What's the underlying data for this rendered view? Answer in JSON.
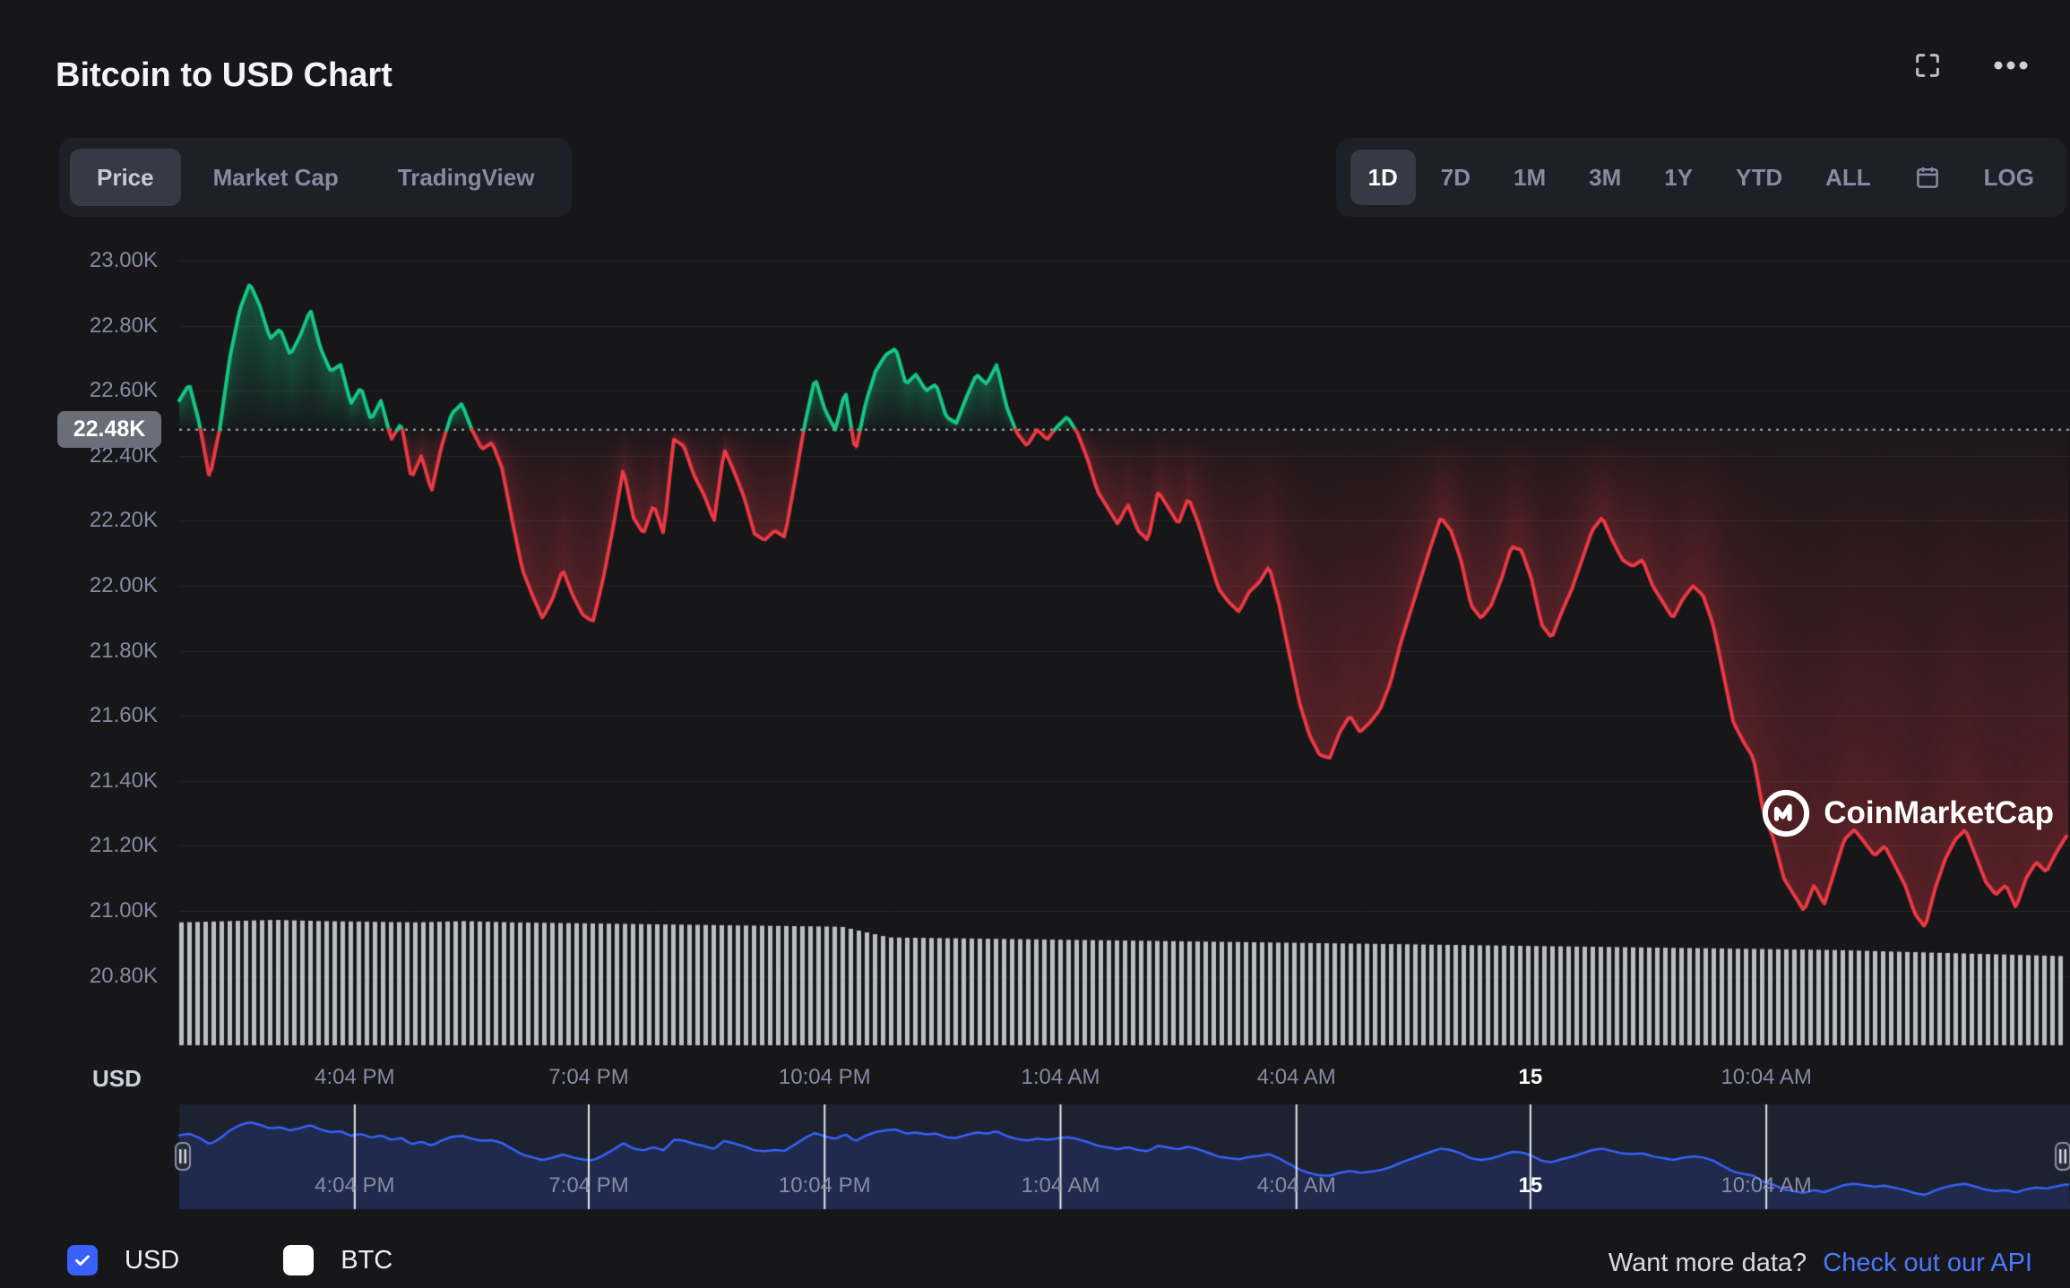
{
  "header": {
    "title": "Bitcoin to USD Chart"
  },
  "tabs": {
    "items": [
      {
        "label": "Price",
        "active": true
      },
      {
        "label": "Market Cap",
        "active": false
      },
      {
        "label": "TradingView",
        "active": false
      }
    ]
  },
  "ranges": {
    "items": [
      {
        "label": "1D",
        "active": true
      },
      {
        "label": "7D",
        "active": false
      },
      {
        "label": "1M",
        "active": false
      },
      {
        "label": "3M",
        "active": false
      },
      {
        "label": "1Y",
        "active": false
      },
      {
        "label": "YTD",
        "active": false
      },
      {
        "label": "ALL",
        "active": false
      }
    ],
    "log_label": "LOG"
  },
  "axis": {
    "usd_label": "USD"
  },
  "watermark": {
    "text": "CoinMarketCap"
  },
  "footer": {
    "usd_label": "USD",
    "btc_label": "BTC",
    "prompt": "Want more data?",
    "link": "Check out our API"
  },
  "colors": {
    "background": "#17171a",
    "up_green": "#16c784",
    "down_red": "#ea3943",
    "navigator_blue": "#3961fb",
    "link_blue": "#4a78ff",
    "checkbox_blue": "#3861fb",
    "muted_text": "#858ca2"
  },
  "chart_data": {
    "type": "line",
    "title": "Bitcoin to USD Chart",
    "currency": "USD",
    "baseline": 22.48,
    "baseline_label": "22.48K",
    "ylim": [
      20.7,
      23.05
    ],
    "grid": true,
    "y_ticks": [
      {
        "label": "23.00K",
        "value": 23.0
      },
      {
        "label": "22.80K",
        "value": 22.8
      },
      {
        "label": "22.60K",
        "value": 22.6
      },
      {
        "label": "22.40K",
        "value": 22.4
      },
      {
        "label": "22.20K",
        "value": 22.2
      },
      {
        "label": "22.00K",
        "value": 22.0
      },
      {
        "label": "21.80K",
        "value": 21.8
      },
      {
        "label": "21.60K",
        "value": 21.6
      },
      {
        "label": "21.40K",
        "value": 21.4
      },
      {
        "label": "21.20K",
        "value": 21.2
      },
      {
        "label": "21.00K",
        "value": 21.0
      },
      {
        "label": "20.80K",
        "value": 20.8
      }
    ],
    "x_labels": [
      {
        "label": "4:04 PM",
        "pos": 0.093,
        "bold": false
      },
      {
        "label": "7:04 PM",
        "pos": 0.217,
        "bold": false
      },
      {
        "label": "10:04 PM",
        "pos": 0.342,
        "bold": false
      },
      {
        "label": "1:04 AM",
        "pos": 0.467,
        "bold": false
      },
      {
        "label": "4:04 AM",
        "pos": 0.592,
        "bold": false
      },
      {
        "label": "15",
        "pos": 0.716,
        "bold": true
      },
      {
        "label": "10:04 AM",
        "pos": 0.841,
        "bold": false
      }
    ],
    "up_color": "#16c784",
    "down_color": "#ea3943",
    "navigator_color": "#3961fb",
    "prices": [
      22.57,
      22.62,
      22.5,
      22.33,
      22.48,
      22.7,
      22.85,
      22.93,
      22.86,
      22.76,
      22.79,
      22.71,
      22.77,
      22.85,
      22.73,
      22.66,
      22.68,
      22.56,
      22.61,
      22.51,
      22.57,
      22.45,
      22.5,
      22.33,
      22.4,
      22.29,
      22.43,
      22.53,
      22.56,
      22.48,
      22.42,
      22.44,
      22.36,
      22.2,
      22.05,
      21.97,
      21.9,
      21.96,
      22.05,
      21.97,
      21.91,
      21.89,
      22.02,
      22.18,
      22.36,
      22.21,
      22.16,
      22.25,
      22.16,
      22.45,
      22.43,
      22.34,
      22.28,
      22.2,
      22.42,
      22.35,
      22.27,
      22.16,
      22.14,
      22.17,
      22.15,
      22.32,
      22.5,
      22.64,
      22.54,
      22.48,
      22.6,
      22.41,
      22.56,
      22.66,
      22.71,
      22.73,
      22.62,
      22.65,
      22.6,
      22.62,
      22.52,
      22.5,
      22.58,
      22.65,
      22.62,
      22.68,
      22.55,
      22.47,
      22.43,
      22.48,
      22.45,
      22.49,
      22.52,
      22.47,
      22.39,
      22.29,
      22.24,
      22.19,
      22.25,
      22.17,
      22.14,
      22.29,
      22.24,
      22.19,
      22.27,
      22.19,
      22.09,
      21.99,
      21.95,
      21.92,
      21.98,
      22.01,
      22.06,
      21.94,
      21.79,
      21.64,
      21.54,
      21.48,
      21.47,
      21.55,
      21.6,
      21.55,
      21.58,
      21.62,
      21.7,
      21.82,
      21.92,
      22.02,
      22.12,
      22.21,
      22.17,
      22.08,
      21.94,
      21.9,
      21.94,
      22.02,
      22.12,
      22.11,
      22.02,
      21.88,
      21.84,
      21.92,
      21.99,
      22.08,
      22.17,
      22.21,
      22.14,
      22.08,
      22.06,
      22.08,
      22.0,
      21.95,
      21.9,
      21.96,
      22.0,
      21.97,
      21.88,
      21.73,
      21.58,
      21.52,
      21.47,
      21.3,
      21.22,
      21.1,
      21.05,
      21.0,
      21.08,
      21.02,
      21.12,
      21.22,
      21.25,
      21.21,
      21.17,
      21.2,
      21.14,
      21.08,
      20.99,
      20.95,
      21.07,
      21.16,
      21.22,
      21.25,
      21.17,
      21.09,
      21.05,
      21.08,
      21.01,
      21.1,
      21.15,
      21.12,
      21.18,
      21.23
    ],
    "volume_normalized": [
      0.98,
      0.99,
      1.0,
      0.99,
      0.985,
      0.98,
      0.99,
      0.98,
      0.975,
      0.97,
      0.965,
      0.96,
      0.955,
      0.95,
      0.945,
      0.86,
      0.855,
      0.85,
      0.845,
      0.84,
      0.835,
      0.83,
      0.825,
      0.82,
      0.815,
      0.81,
      0.805,
      0.8,
      0.795,
      0.79,
      0.785,
      0.78,
      0.775,
      0.77,
      0.765,
      0.76,
      0.75,
      0.74,
      0.73,
      0.72,
      0.71
    ]
  }
}
